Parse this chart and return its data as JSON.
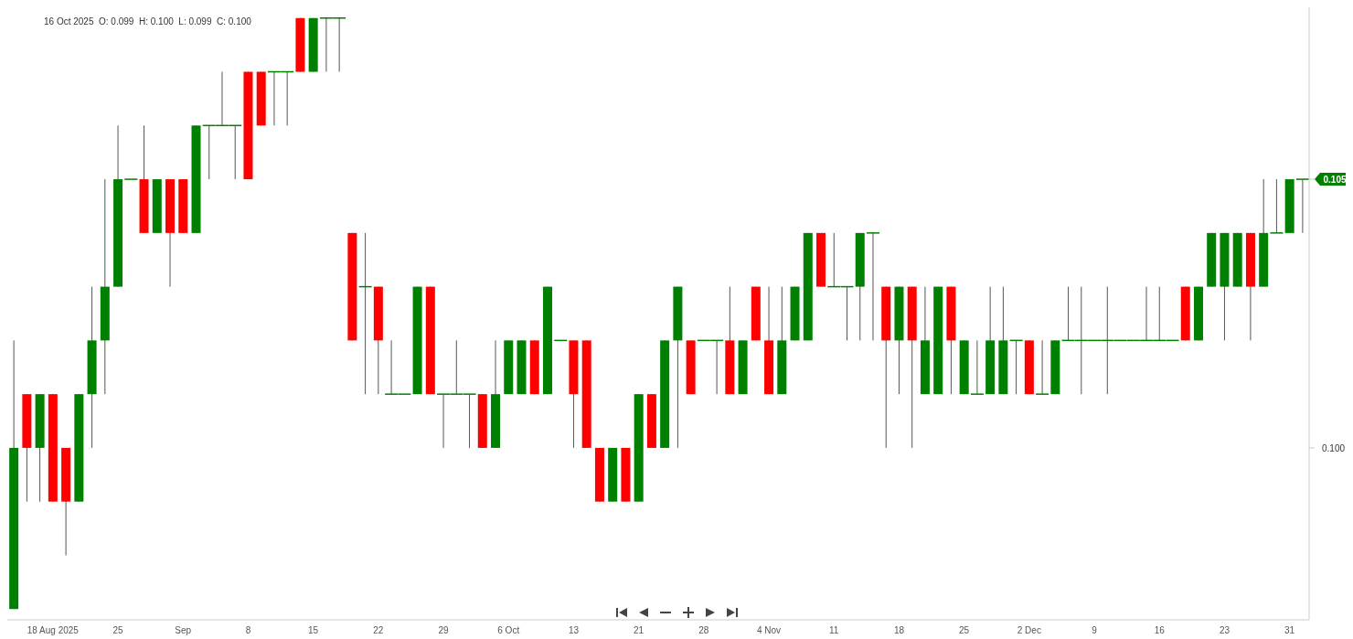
{
  "chart_data": {
    "type": "candlestick",
    "categories": [
      null,
      null,
      null,
      "18 Aug 2025",
      null,
      null,
      null,
      null,
      "25",
      null,
      null,
      null,
      null,
      "Sep",
      null,
      null,
      null,
      null,
      "8",
      null,
      null,
      null,
      null,
      "15",
      null,
      null,
      null,
      null,
      "22",
      null,
      null,
      null,
      null,
      "29",
      null,
      null,
      null,
      null,
      "6 Oct",
      null,
      null,
      null,
      null,
      "13",
      null,
      null,
      null,
      null,
      "21",
      null,
      null,
      null,
      null,
      "28",
      null,
      null,
      null,
      null,
      "4 Nov",
      null,
      null,
      null,
      null,
      "11",
      null,
      null,
      null,
      null,
      "18",
      null,
      null,
      null,
      null,
      "25",
      null,
      null,
      null,
      null,
      "2 Dec",
      null,
      null,
      null,
      null,
      "9",
      null,
      null,
      null,
      null,
      "16",
      null,
      null,
      null,
      null,
      "23",
      null,
      null,
      null,
      null,
      "31",
      null
    ],
    "ohlc": [
      [
        0.097,
        0.102,
        0.097,
        0.1
      ],
      [
        0.101,
        0.101,
        0.099,
        0.1
      ],
      [
        0.1,
        0.101,
        0.099,
        0.101
      ],
      [
        0.101,
        0.101,
        0.099,
        0.099
      ],
      [
        0.1,
        0.1,
        0.098,
        0.099
      ],
      [
        0.099,
        0.101,
        0.099,
        0.101
      ],
      [
        0.101,
        0.103,
        0.1,
        0.102
      ],
      [
        0.102,
        0.105,
        0.101,
        0.103
      ],
      [
        0.103,
        0.106,
        0.103,
        0.105
      ],
      [
        0.105,
        0.105,
        0.105,
        0.105
      ],
      [
        0.105,
        0.106,
        0.104,
        0.104
      ],
      [
        0.104,
        0.105,
        0.104,
        0.105
      ],
      [
        0.105,
        0.105,
        0.103,
        0.104
      ],
      [
        0.105,
        0.105,
        0.104,
        0.104
      ],
      [
        0.104,
        0.106,
        0.104,
        0.106
      ],
      [
        0.106,
        0.106,
        0.105,
        0.106
      ],
      [
        0.106,
        0.107,
        0.106,
        0.106
      ],
      [
        0.106,
        0.106,
        0.105,
        0.106
      ],
      [
        0.107,
        0.107,
        0.105,
        0.105
      ],
      [
        0.107,
        0.107,
        0.106,
        0.106
      ],
      [
        0.107,
        0.107,
        0.106,
        0.107
      ],
      [
        0.107,
        0.107,
        0.106,
        0.107
      ],
      [
        0.108,
        0.108,
        0.107,
        0.107
      ],
      [
        0.107,
        0.108,
        0.107,
        0.108
      ],
      [
        0.108,
        0.108,
        0.107,
        0.108
      ],
      [
        0.108,
        0.108,
        0.107,
        0.108
      ],
      [
        0.104,
        0.104,
        0.102,
        0.102
      ],
      [
        0.103,
        0.104,
        0.101,
        0.103
      ],
      [
        0.103,
        0.103,
        0.101,
        0.102
      ],
      [
        0.101,
        0.102,
        0.101,
        0.101
      ],
      [
        0.101,
        0.101,
        0.101,
        0.101
      ],
      [
        0.101,
        0.103,
        0.101,
        0.103
      ],
      [
        0.103,
        0.103,
        0.101,
        0.101
      ],
      [
        0.101,
        0.101,
        0.1,
        0.101
      ],
      [
        0.101,
        0.102,
        0.101,
        0.101
      ],
      [
        0.101,
        0.101,
        0.1,
        0.101
      ],
      [
        0.101,
        0.101,
        0.1,
        0.1
      ],
      [
        0.1,
        0.102,
        0.1,
        0.101
      ],
      [
        0.101,
        0.102,
        0.101,
        0.102
      ],
      [
        0.101,
        0.102,
        0.101,
        0.102
      ],
      [
        0.102,
        0.102,
        0.101,
        0.101
      ],
      [
        0.101,
        0.103,
        0.101,
        0.103
      ],
      [
        0.102,
        0.102,
        0.102,
        0.102
      ],
      [
        0.102,
        0.102,
        0.1,
        0.101
      ],
      [
        0.102,
        0.102,
        0.1,
        0.1
      ],
      [
        0.1,
        0.1,
        0.099,
        0.099
      ],
      [
        0.099,
        0.1,
        0.099,
        0.1
      ],
      [
        0.1,
        0.1,
        0.099,
        0.099
      ],
      [
        0.099,
        0.101,
        0.099,
        0.101
      ],
      [
        0.101,
        0.101,
        0.1,
        0.1
      ],
      [
        0.1,
        0.102,
        0.1,
        0.102
      ],
      [
        0.102,
        0.103,
        0.1,
        0.103
      ],
      [
        0.102,
        0.102,
        0.101,
        0.101
      ],
      [
        0.102,
        0.102,
        0.102,
        0.102
      ],
      [
        0.102,
        0.102,
        0.101,
        0.102
      ],
      [
        0.102,
        0.103,
        0.101,
        0.101
      ],
      [
        0.101,
        0.102,
        0.101,
        0.102
      ],
      [
        0.103,
        0.103,
        0.102,
        0.102
      ],
      [
        0.102,
        0.103,
        0.101,
        0.101
      ],
      [
        0.101,
        0.103,
        0.101,
        0.102
      ],
      [
        0.102,
        0.103,
        0.102,
        0.103
      ],
      [
        0.102,
        0.104,
        0.102,
        0.104
      ],
      [
        0.104,
        0.104,
        0.103,
        0.103
      ],
      [
        0.103,
        0.104,
        0.103,
        0.103
      ],
      [
        0.103,
        0.103,
        0.102,
        0.103
      ],
      [
        0.103,
        0.104,
        0.102,
        0.104
      ],
      [
        0.104,
        0.104,
        0.102,
        0.104
      ],
      [
        0.103,
        0.103,
        0.1,
        0.102
      ],
      [
        0.102,
        0.103,
        0.101,
        0.103
      ],
      [
        0.103,
        0.103,
        0.1,
        0.102
      ],
      [
        0.101,
        0.103,
        0.101,
        0.102
      ],
      [
        0.101,
        0.103,
        0.101,
        0.103
      ],
      [
        0.103,
        0.103,
        0.101,
        0.102
      ],
      [
        0.101,
        0.102,
        0.101,
        0.102
      ],
      [
        0.101,
        0.102,
        0.101,
        0.101
      ],
      [
        0.101,
        0.103,
        0.101,
        0.102
      ],
      [
        0.101,
        0.103,
        0.101,
        0.102
      ],
      [
        0.102,
        0.102,
        0.101,
        0.102
      ],
      [
        0.102,
        0.102,
        0.101,
        0.101
      ],
      [
        0.101,
        0.102,
        0.101,
        0.101
      ],
      [
        0.101,
        0.102,
        0.101,
        0.102
      ],
      [
        0.102,
        0.103,
        0.102,
        0.102
      ],
      [
        0.102,
        0.103,
        0.101,
        0.102
      ],
      [
        0.102,
        0.102,
        0.102,
        0.102
      ],
      [
        0.102,
        0.103,
        0.101,
        0.102
      ],
      [
        0.102,
        0.102,
        0.102,
        0.102
      ],
      [
        0.102,
        0.102,
        0.102,
        0.102
      ],
      [
        0.102,
        0.103,
        0.102,
        0.102
      ],
      [
        0.102,
        0.103,
        0.102,
        0.102
      ],
      [
        0.102,
        0.102,
        0.102,
        0.102
      ],
      [
        0.103,
        0.103,
        0.102,
        0.102
      ],
      [
        0.102,
        0.103,
        0.102,
        0.103
      ],
      [
        0.103,
        0.104,
        0.103,
        0.104
      ],
      [
        0.103,
        0.104,
        0.102,
        0.104
      ],
      [
        0.103,
        0.104,
        0.103,
        0.104
      ],
      [
        0.104,
        0.104,
        0.102,
        0.103
      ],
      [
        0.103,
        0.105,
        0.103,
        0.104
      ],
      [
        0.104,
        0.105,
        0.104,
        0.104
      ],
      [
        0.104,
        0.105,
        0.104,
        0.105
      ],
      [
        0.105,
        0.105,
        0.104,
        0.105
      ]
    ],
    "colors": [
      "#008000",
      "#ff0000",
      "#008000",
      "#ff0000",
      "#ff0000",
      "#008000",
      "#008000",
      "#008000",
      "#008000",
      "#008000",
      "#ff0000",
      "#008000",
      "#ff0000",
      "#ff0000",
      "#008000",
      "#008000",
      "#008000",
      "#008000",
      "#ff0000",
      "#ff0000",
      "#008000",
      "#008000",
      "#ff0000",
      "#008000",
      "#008000",
      "#008000",
      "#ff0000",
      "#008000",
      "#ff0000",
      "#008000",
      "#008000",
      "#008000",
      "#ff0000",
      "#008000",
      "#008000",
      "#008000",
      "#ff0000",
      "#008000",
      "#008000",
      "#008000",
      "#ff0000",
      "#008000",
      "#008000",
      "#ff0000",
      "#ff0000",
      "#ff0000",
      "#008000",
      "#ff0000",
      "#008000",
      "#ff0000",
      "#008000",
      "#008000",
      "#ff0000",
      "#008000",
      "#008000",
      "#ff0000",
      "#008000",
      "#ff0000",
      "#ff0000",
      "#008000",
      "#008000",
      "#008000",
      "#ff0000",
      "#008000",
      "#008000",
      "#008000",
      "#008000",
      "#ff0000",
      "#008000",
      "#ff0000",
      "#008000",
      "#008000",
      "#ff0000",
      "#008000",
      "#008000",
      "#008000",
      "#008000",
      "#008000",
      "#ff0000",
      "#008000",
      "#008000",
      "#008000",
      "#008000",
      "#008000",
      "#008000",
      "#008000",
      "#008000",
      "#008000",
      "#008000",
      "#008000",
      "#ff0000",
      "#008000",
      "#008000",
      "#008000",
      "#008000",
      "#ff0000",
      "#008000",
      "#008000",
      "#008000",
      "#008000"
    ],
    "ylim": [
      0.0968,
      0.1082
    ],
    "yticks": [
      {
        "value": 0.1,
        "label": "0.100"
      },
      {
        "value": 0.105,
        "label": "0.105"
      }
    ],
    "grid": false,
    "legend": false,
    "annotations": [
      "16 Oct 2025  O: 0.099  H: 0.100  L: 0.099  C: 0.100"
    ]
  }
}
